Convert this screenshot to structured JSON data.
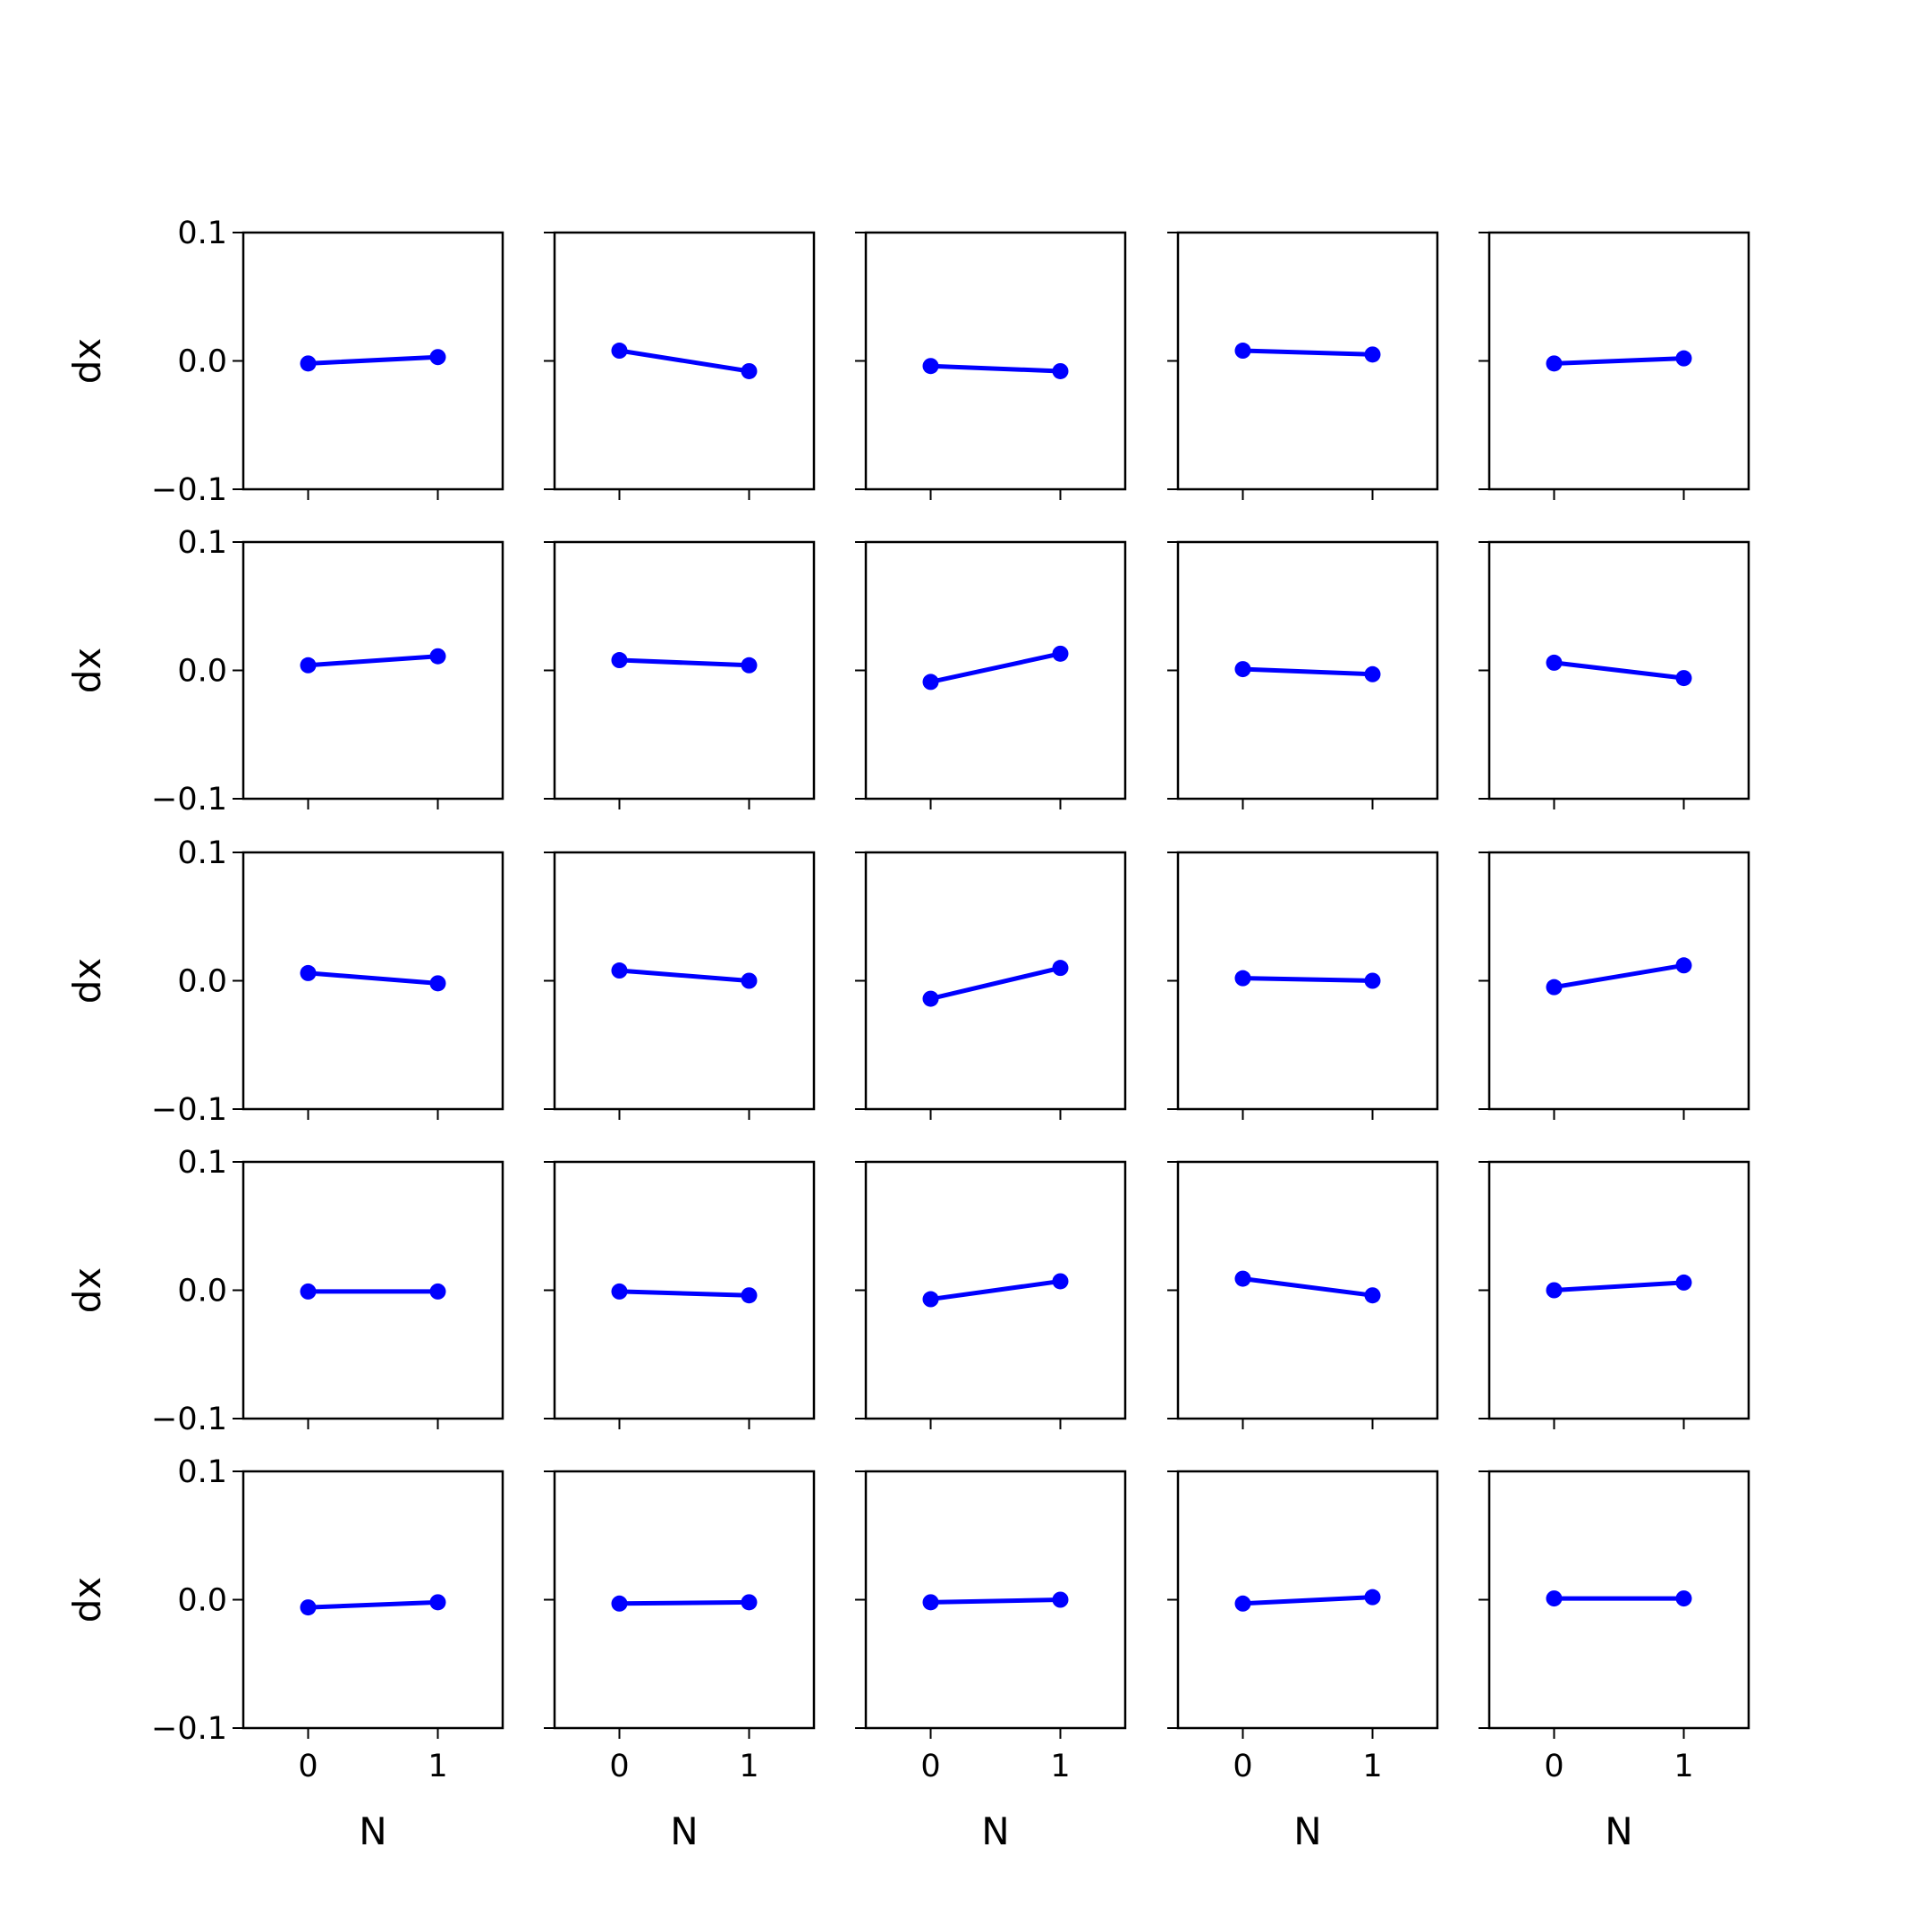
{
  "chart_data": {
    "type": "line",
    "layout": "5x5 small multiples",
    "x": [
      0,
      1
    ],
    "xticks": [
      "0",
      "1"
    ],
    "yticks": [
      "0.1",
      "0.0",
      "−0.1"
    ],
    "xlabel": "N",
    "ylabel": "dx",
    "xlim": [
      -0.5,
      1.5
    ],
    "ylim": [
      -0.1,
      0.1
    ],
    "line_color": "#0000ff",
    "grid": false,
    "panels": [
      {
        "row": 1,
        "col": 1,
        "values": [
          -0.002,
          0.003
        ]
      },
      {
        "row": 1,
        "col": 2,
        "values": [
          0.008,
          -0.008
        ]
      },
      {
        "row": 1,
        "col": 3,
        "values": [
          -0.004,
          -0.008
        ]
      },
      {
        "row": 1,
        "col": 4,
        "values": [
          0.008,
          0.005
        ]
      },
      {
        "row": 1,
        "col": 5,
        "values": [
          -0.002,
          0.002
        ]
      },
      {
        "row": 2,
        "col": 1,
        "values": [
          0.004,
          0.011
        ]
      },
      {
        "row": 2,
        "col": 2,
        "values": [
          0.008,
          0.004
        ]
      },
      {
        "row": 2,
        "col": 3,
        "values": [
          -0.009,
          0.013
        ]
      },
      {
        "row": 2,
        "col": 4,
        "values": [
          0.001,
          -0.003
        ]
      },
      {
        "row": 2,
        "col": 5,
        "values": [
          0.006,
          -0.006
        ]
      },
      {
        "row": 3,
        "col": 1,
        "values": [
          0.006,
          -0.002
        ]
      },
      {
        "row": 3,
        "col": 2,
        "values": [
          0.008,
          0.0
        ]
      },
      {
        "row": 3,
        "col": 3,
        "values": [
          -0.014,
          0.01
        ]
      },
      {
        "row": 3,
        "col": 4,
        "values": [
          0.002,
          0.0
        ]
      },
      {
        "row": 3,
        "col": 5,
        "values": [
          -0.005,
          0.012
        ]
      },
      {
        "row": 4,
        "col": 1,
        "values": [
          -0.001,
          -0.001
        ]
      },
      {
        "row": 4,
        "col": 2,
        "values": [
          -0.001,
          -0.004
        ]
      },
      {
        "row": 4,
        "col": 3,
        "values": [
          -0.007,
          0.007
        ]
      },
      {
        "row": 4,
        "col": 4,
        "values": [
          0.009,
          -0.004
        ]
      },
      {
        "row": 4,
        "col": 5,
        "values": [
          0.0,
          0.006
        ]
      },
      {
        "row": 5,
        "col": 1,
        "values": [
          -0.006,
          -0.002
        ]
      },
      {
        "row": 5,
        "col": 2,
        "values": [
          -0.003,
          -0.002
        ]
      },
      {
        "row": 5,
        "col": 3,
        "values": [
          -0.002,
          0.0
        ]
      },
      {
        "row": 5,
        "col": 4,
        "values": [
          -0.003,
          0.002
        ]
      },
      {
        "row": 5,
        "col": 5,
        "values": [
          0.001,
          0.001
        ]
      }
    ]
  }
}
